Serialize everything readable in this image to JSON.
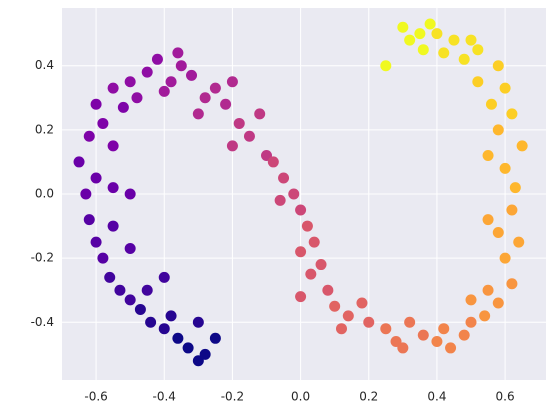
{
  "chart_data": {
    "type": "scatter",
    "x": [
      -0.3,
      -0.28,
      -0.33,
      -0.25,
      -0.36,
      -0.4,
      -0.44,
      -0.38,
      -0.3,
      -0.47,
      -0.5,
      -0.53,
      -0.45,
      -0.56,
      -0.4,
      -0.58,
      -0.6,
      -0.55,
      -0.5,
      -0.62,
      -0.63,
      -0.6,
      -0.55,
      -0.65,
      -0.5,
      -0.62,
      -0.58,
      -0.55,
      -0.6,
      -0.52,
      -0.55,
      -0.5,
      -0.48,
      -0.45,
      -0.42,
      -0.38,
      -0.35,
      -0.4,
      -0.32,
      -0.36,
      -0.28,
      -0.25,
      -0.22,
      -0.2,
      -0.3,
      -0.18,
      -0.15,
      -0.2,
      -0.12,
      -0.1,
      -0.08,
      -0.05,
      -0.02,
      0.0,
      -0.06,
      0.02,
      0.04,
      0.0,
      0.06,
      0.03,
      0.08,
      0.0,
      0.1,
      0.14,
      0.18,
      0.12,
      0.2,
      0.25,
      0.28,
      0.32,
      0.3,
      0.36,
      0.4,
      0.44,
      0.48,
      0.42,
      0.5,
      0.54,
      0.58,
      0.55,
      0.62,
      0.5,
      0.6,
      0.64,
      0.58,
      0.55,
      0.62,
      0.63,
      0.6,
      0.55,
      0.65,
      0.58,
      0.62,
      0.56,
      0.6,
      0.52,
      0.58,
      0.52,
      0.48,
      0.45,
      0.42,
      0.4,
      0.5,
      0.35,
      0.3,
      0.32,
      0.38,
      0.25,
      0.36
    ],
    "values": [
      -0.52,
      -0.5,
      -0.48,
      -0.45,
      -0.45,
      -0.42,
      -0.4,
      -0.38,
      -0.4,
      -0.36,
      -0.33,
      -0.3,
      -0.3,
      -0.26,
      -0.26,
      -0.2,
      -0.15,
      -0.1,
      -0.17,
      -0.08,
      0.0,
      0.05,
      0.02,
      0.1,
      0.0,
      0.18,
      0.22,
      0.15,
      0.28,
      0.27,
      0.33,
      0.35,
      0.3,
      0.38,
      0.42,
      0.35,
      0.4,
      0.32,
      0.37,
      0.44,
      0.3,
      0.33,
      0.28,
      0.35,
      0.25,
      0.22,
      0.18,
      0.15,
      0.25,
      0.12,
      0.1,
      0.05,
      0.0,
      -0.05,
      -0.02,
      -0.1,
      -0.15,
      -0.18,
      -0.22,
      -0.25,
      -0.3,
      -0.32,
      -0.35,
      -0.38,
      -0.34,
      -0.42,
      -0.4,
      -0.42,
      -0.46,
      -0.4,
      -0.48,
      -0.44,
      -0.46,
      -0.48,
      -0.44,
      -0.42,
      -0.4,
      -0.38,
      -0.34,
      -0.3,
      -0.28,
      -0.33,
      -0.2,
      -0.15,
      -0.12,
      -0.08,
      -0.05,
      0.02,
      0.08,
      0.12,
      0.15,
      0.2,
      0.25,
      0.28,
      0.33,
      0.35,
      0.4,
      0.45,
      0.42,
      0.48,
      0.44,
      0.5,
      0.48,
      0.5,
      0.52,
      0.48,
      0.53,
      0.4,
      0.45
    ],
    "colors": [
      "#0d0887",
      "#0d0887",
      "#0d0887",
      "#0d0887",
      "#0d0887",
      "#260591",
      "#260591",
      "#260591",
      "#260591",
      "#260591",
      "#41049d",
      "#41049d",
      "#41049d",
      "#41049d",
      "#41049d",
      "#5601a4",
      "#5601a4",
      "#5601a4",
      "#5601a4",
      "#5601a4",
      "#6a00a8",
      "#6a00a8",
      "#6a00a8",
      "#6a00a8",
      "#6a00a8",
      "#7e03a8",
      "#7e03a8",
      "#7e03a8",
      "#7e03a8",
      "#7e03a8",
      "#8f0da4",
      "#8f0da4",
      "#8f0da4",
      "#8f0da4",
      "#8f0da4",
      "#a11b9b",
      "#a11b9b",
      "#a11b9b",
      "#a11b9b",
      "#a11b9b",
      "#b12a90",
      "#b12a90",
      "#b12a90",
      "#b12a90",
      "#b12a90",
      "#bf3984",
      "#bf3984",
      "#bf3984",
      "#bf3984",
      "#bf3984",
      "#cc4778",
      "#cc4778",
      "#cc4778",
      "#cc4778",
      "#cc4778",
      "#d8576b",
      "#d8576b",
      "#d8576b",
      "#d8576b",
      "#d8576b",
      "#d8576b",
      "#d8576b",
      "#e16462",
      "#e16462",
      "#e16462",
      "#e16462",
      "#e16462",
      "#eb7655",
      "#eb7655",
      "#eb7655",
      "#eb7655",
      "#eb7655",
      "#f2844b",
      "#f2844b",
      "#f2844b",
      "#f2844b",
      "#f2844b",
      "#f89540",
      "#f89540",
      "#f89540",
      "#f89540",
      "#f89540",
      "#fca636",
      "#fca636",
      "#fca636",
      "#fca636",
      "#fca636",
      "#feb72d",
      "#feb72d",
      "#feb72d",
      "#feb72d",
      "#feb72d",
      "#fcce25",
      "#fcce25",
      "#fcce25",
      "#fcce25",
      "#fcce25",
      "#f7e225",
      "#f7e225",
      "#f7e225",
      "#f7e225",
      "#f7e225",
      "#f7e225",
      "#f0f921",
      "#f0f921",
      "#f0f921",
      "#f0f921",
      "#f0f921",
      "#f0f921"
    ],
    "xlim": [
      -0.7,
      0.72
    ],
    "ylim": [
      -0.58,
      0.58
    ],
    "xticks": [
      -0.6,
      -0.4,
      -0.2,
      {
        "value": 0,
        "label": "0.0"
      },
      0.2,
      0.4,
      0.6
    ],
    "yticks": [
      -0.4,
      -0.2,
      {
        "value": 0,
        "label": "0.0"
      },
      0.2,
      0.4
    ],
    "grid": true
  }
}
